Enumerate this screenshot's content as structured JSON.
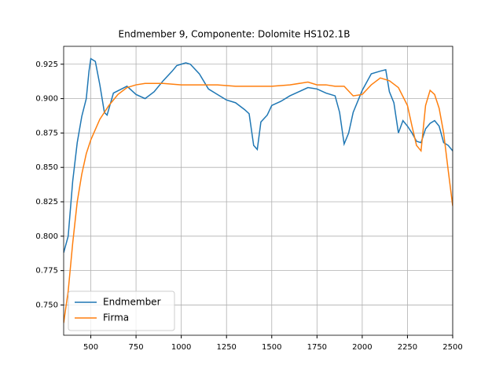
{
  "chart_data": {
    "type": "line",
    "title": "Endmember 9, Componente: Dolomite HS102.1B",
    "xlim": [
      350,
      2500
    ],
    "ylim": [
      0.728,
      0.938
    ],
    "xticks": [
      500,
      750,
      1000,
      1250,
      1500,
      1750,
      2000,
      2250,
      2500
    ],
    "yticks": [
      {
        "value": 0.75,
        "label": "0.750"
      },
      0.775,
      {
        "value": 0.8,
        "label": "0.800"
      },
      0.825,
      {
        "value": 0.85,
        "label": "0.850"
      },
      0.875,
      {
        "value": 0.9,
        "label": "0.900"
      },
      0.925
    ],
    "grid": true,
    "legend": "lower left",
    "series": [
      {
        "name": "Endmember",
        "color": "#1f77b4",
        "x": [
          350,
          375,
          400,
          425,
          450,
          475,
          490,
          500,
          525,
          550,
          575,
          590,
          625,
          700,
          750,
          800,
          850,
          900,
          950,
          975,
          1000,
          1025,
          1050,
          1100,
          1150,
          1200,
          1250,
          1300,
          1350,
          1375,
          1400,
          1420,
          1440,
          1475,
          1500,
          1550,
          1600,
          1650,
          1700,
          1750,
          1800,
          1850,
          1875,
          1900,
          1925,
          1950,
          2000,
          2050,
          2100,
          2130,
          2150,
          2175,
          2200,
          2225,
          2250,
          2275,
          2300,
          2325,
          2350,
          2375,
          2400,
          2425,
          2450,
          2475,
          2500
        ],
        "values": [
          0.788,
          0.8,
          0.84,
          0.868,
          0.887,
          0.9,
          0.92,
          0.929,
          0.927,
          0.91,
          0.89,
          0.888,
          0.904,
          0.909,
          0.903,
          0.9,
          0.905,
          0.913,
          0.92,
          0.924,
          0.925,
          0.926,
          0.925,
          0.918,
          0.907,
          0.903,
          0.899,
          0.897,
          0.892,
          0.889,
          0.866,
          0.863,
          0.883,
          0.888,
          0.895,
          0.898,
          0.902,
          0.905,
          0.908,
          0.907,
          0.904,
          0.902,
          0.89,
          0.867,
          0.875,
          0.89,
          0.906,
          0.918,
          0.92,
          0.921,
          0.905,
          0.897,
          0.875,
          0.884,
          0.88,
          0.875,
          0.869,
          0.868,
          0.878,
          0.882,
          0.884,
          0.88,
          0.868,
          0.866,
          0.862
        ]
      },
      {
        "name": "Firma",
        "color": "#ff7f0e",
        "x": [
          350,
          375,
          400,
          425,
          450,
          475,
          500,
          550,
          600,
          650,
          700,
          750,
          800,
          900,
          1000,
          1100,
          1200,
          1300,
          1400,
          1500,
          1600,
          1700,
          1750,
          1800,
          1850,
          1900,
          1950,
          2000,
          2050,
          2100,
          2150,
          2200,
          2250,
          2275,
          2300,
          2325,
          2350,
          2375,
          2400,
          2425,
          2450,
          2475,
          2500
        ],
        "values": [
          0.737,
          0.76,
          0.795,
          0.825,
          0.845,
          0.86,
          0.87,
          0.885,
          0.895,
          0.903,
          0.908,
          0.91,
          0.911,
          0.911,
          0.91,
          0.91,
          0.91,
          0.909,
          0.909,
          0.909,
          0.91,
          0.912,
          0.91,
          0.91,
          0.909,
          0.909,
          0.902,
          0.903,
          0.91,
          0.915,
          0.913,
          0.908,
          0.895,
          0.88,
          0.866,
          0.862,
          0.895,
          0.906,
          0.903,
          0.893,
          0.875,
          0.848,
          0.822
        ]
      }
    ]
  }
}
